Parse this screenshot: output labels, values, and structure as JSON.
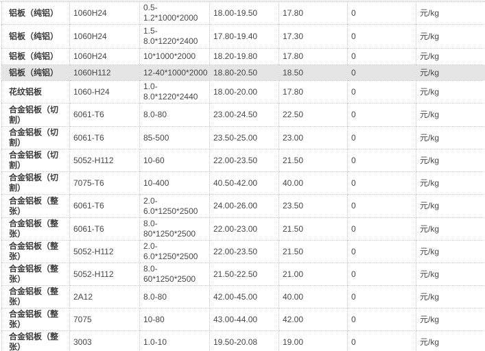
{
  "table": {
    "highlight_color": "#e5e5e5",
    "border_color": "#c9c9c9",
    "rows": [
      {
        "product": "铝板（纯铝）",
        "model": "1060H24",
        "spec": "0.5-\n1.2*1000*2000",
        "price_range": "18.00-19.50",
        "price": "17.80",
        "flag": "0",
        "unit": "元/kg",
        "highlighted": false
      },
      {
        "product": "铝板（纯铝）",
        "model": "1060H24",
        "spec": "1.5-\n8.0*1220*2400",
        "price_range": "17.80-19.40",
        "price": "17.30",
        "flag": "0",
        "unit": "元/kg",
        "highlighted": false
      },
      {
        "product": "铝板（纯铝）",
        "model": "1060H24",
        "spec": "10*1000*2000",
        "price_range": "18.20-19.80",
        "price": "17.80",
        "flag": "0",
        "unit": "元/kg",
        "highlighted": false
      },
      {
        "product": "铝板（纯铝）",
        "model": "1060H112",
        "spec": "12-40*1000*2000",
        "price_range": "18.80-20.50",
        "price": "18.50",
        "flag": "0",
        "unit": "元/kg",
        "highlighted": true
      },
      {
        "product": "花纹铝板",
        "model": "1060-H24",
        "spec": "1.0-\n8.0*1220*2440",
        "price_range": "18.00-20.00",
        "price": "17.80",
        "flag": "0",
        "unit": "元/kg",
        "highlighted": false
      },
      {
        "product": "合金铝板（切\n割）",
        "model": "6061-T6",
        "spec": "8.0-80",
        "price_range": "23.00-24.50",
        "price": "22.50",
        "flag": "0",
        "unit": "元/kg",
        "highlighted": false
      },
      {
        "product": "合金铝板（切\n割）",
        "model": "6061-T6",
        "spec": "85-500",
        "price_range": "23.50-25.00",
        "price": "23.00",
        "flag": "0",
        "unit": "元/kg",
        "highlighted": false
      },
      {
        "product": "合金铝板（切\n割）",
        "model": "5052-H112",
        "spec": "10-60",
        "price_range": "22.00-23.50",
        "price": "21.50",
        "flag": "0",
        "unit": "元/kg",
        "highlighted": false
      },
      {
        "product": "合金铝板（切\n割）",
        "model": "7075-T6",
        "spec": "10-400",
        "price_range": "40.50-42.00",
        "price": "40.00",
        "flag": "0",
        "unit": "元/kg",
        "highlighted": false
      },
      {
        "product": "合金铝板（整\n张）",
        "model": "6061-T6",
        "spec": "2.0-\n6.0*1250*2500",
        "price_range": "24.00-26.00",
        "price": "23.50",
        "flag": "0",
        "unit": "元/kg",
        "highlighted": false
      },
      {
        "product": "合金铝板（整\n张）",
        "model": "6061-T6",
        "spec": "8.0-\n80*1250*2500",
        "price_range": "22.00-23.00",
        "price": "21.50",
        "flag": "0",
        "unit": "元/kg",
        "highlighted": false
      },
      {
        "product": "合金铝板（整\n张）",
        "model": "5052-H112",
        "spec": "2.0-\n6.0*1250*2500",
        "price_range": "22.00-23.50",
        "price": "21.50",
        "flag": "0",
        "unit": "元/kg",
        "highlighted": false
      },
      {
        "product": "合金铝板（整\n张）",
        "model": "5052-H112",
        "spec": "8.0-\n60*1250*2500",
        "price_range": "21.50-22.50",
        "price": "21.00",
        "flag": "0",
        "unit": "元/kg",
        "highlighted": false
      },
      {
        "product": "合金铝板（整\n张）",
        "model": "2A12",
        "spec": "8.0-80",
        "price_range": "42.00-45.00",
        "price": "40.00",
        "flag": "0",
        "unit": "元/kg",
        "highlighted": false
      },
      {
        "product": "合金铝板（整\n张）",
        "model": "7075",
        "spec": "10-80",
        "price_range": "43.00-44.00",
        "price": "42.00",
        "flag": "0",
        "unit": "元/kg",
        "highlighted": false
      },
      {
        "product": "合金铝板（整\n张）",
        "model": "3003",
        "spec": "1.0-10",
        "price_range": "19.50-20.08",
        "price": "19.00",
        "flag": "0",
        "unit": "元/kg",
        "highlighted": false
      }
    ]
  }
}
